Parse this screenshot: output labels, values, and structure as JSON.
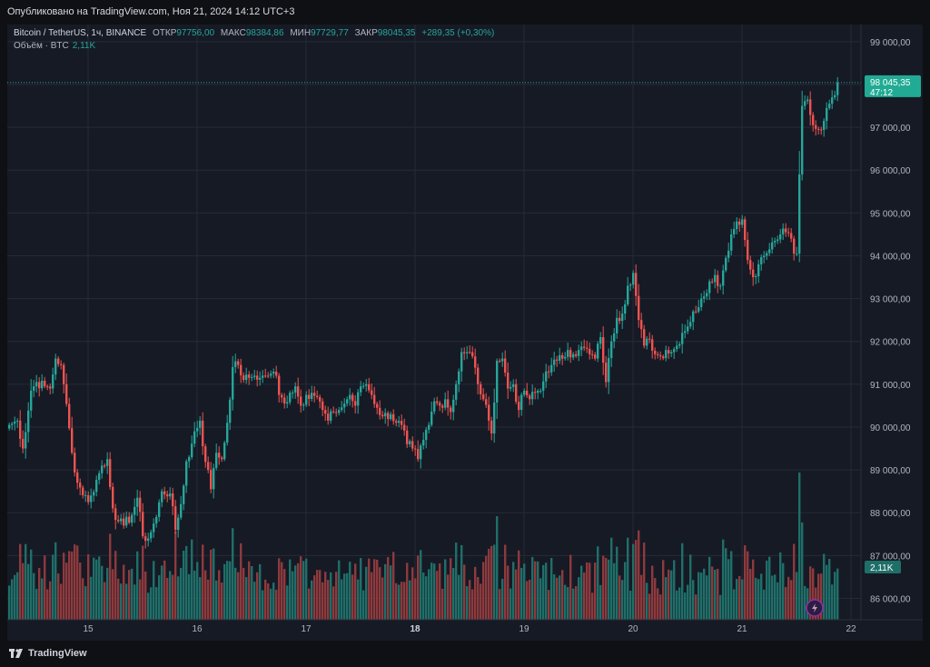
{
  "header": {
    "published": "Опубликовано на TradingView.com, Ноя 21, 2024 14:12 UTC+3"
  },
  "legend": {
    "symbol": "Bitcoin / TetherUS, 1ч, BINANCE",
    "open_label": "ОТКР",
    "open_value": "97756,00",
    "high_label": "МАКС",
    "high_value": "98384,86",
    "low_label": "МИН",
    "low_value": "97729,77",
    "close_label": "ЗАКР",
    "close_value": "98045,35",
    "change": "+289,35 (+0,30%)",
    "volume_label": "Объём · BTC",
    "volume_value": "2,11K"
  },
  "brand": "TradingView",
  "colors": {
    "up": "#26a69a",
    "down": "#ef5350",
    "background": "#161a25",
    "grid": "#252a37",
    "price_tag": "#22ab94",
    "volume_up": "#1f6f69",
    "volume_down": "#8e3a3d"
  },
  "chart_data": {
    "type": "candlestick",
    "symbol": "BTC/USDT",
    "interval": "1h",
    "price_axis": {
      "ticks": [
        "99 000,00",
        "98 000,00",
        "97 000,00",
        "96 000,00",
        "95 000,00",
        "94 000,00",
        "93 000,00",
        "92 000,00",
        "91 000,00",
        "90 000,00",
        "89 000,00",
        "88 000,00",
        "87 000,00",
        "86 000,00"
      ],
      "range": [
        85500,
        99400
      ],
      "position": "right"
    },
    "time_axis": {
      "labels": [
        "15",
        "16",
        "17",
        "18",
        "19",
        "20",
        "21",
        "22"
      ]
    },
    "last_price_label": "98 045,35",
    "countdown": "47:12",
    "last_price": 98045.35,
    "volume_label": "2,11K",
    "grid": true,
    "anchors": [
      [
        0,
        90050
      ],
      [
        3,
        90150
      ],
      [
        5,
        89500
      ],
      [
        8,
        90850
      ],
      [
        10,
        91050
      ],
      [
        13,
        90950
      ],
      [
        15,
        90900
      ],
      [
        17,
        91600
      ],
      [
        19,
        91450
      ],
      [
        20,
        91000
      ],
      [
        23,
        89400
      ],
      [
        25,
        88700
      ],
      [
        29,
        88250
      ],
      [
        30,
        88400
      ],
      [
        34,
        89100
      ],
      [
        36,
        89250
      ],
      [
        37,
        88600
      ],
      [
        38,
        88100
      ],
      [
        40,
        87800
      ],
      [
        42,
        87700
      ],
      [
        45,
        87950
      ],
      [
        47,
        88350
      ],
      [
        49,
        87450
      ],
      [
        51,
        87400
      ],
      [
        54,
        87900
      ],
      [
        56,
        88500
      ],
      [
        59,
        88450
      ],
      [
        61,
        87600
      ],
      [
        63,
        88200
      ],
      [
        65,
        89200
      ],
      [
        66,
        89300
      ],
      [
        68,
        89900
      ],
      [
        70,
        90150
      ],
      [
        71,
        89550
      ],
      [
        73,
        89000
      ],
      [
        74,
        88550
      ],
      [
        76,
        89400
      ],
      [
        78,
        89250
      ],
      [
        80,
        90100
      ],
      [
        82,
        91400
      ],
      [
        84,
        91450
      ],
      [
        86,
        91100
      ],
      [
        88,
        91150
      ],
      [
        90,
        91200
      ],
      [
        92,
        91150
      ],
      [
        94,
        91200
      ],
      [
        96,
        91250
      ],
      [
        98,
        91200
      ],
      [
        99,
        90750
      ],
      [
        101,
        90550
      ],
      [
        103,
        90800
      ],
      [
        105,
        90950
      ],
      [
        107,
        90500
      ],
      [
        109,
        90750
      ],
      [
        111,
        90800
      ],
      [
        113,
        90700
      ],
      [
        115,
        90400
      ],
      [
        117,
        90150
      ],
      [
        119,
        90350
      ],
      [
        121,
        90400
      ],
      [
        123,
        90550
      ],
      [
        125,
        90750
      ],
      [
        127,
        90500
      ],
      [
        129,
        90950
      ],
      [
        131,
        91000
      ],
      [
        133,
        90750
      ],
      [
        135,
        90450
      ],
      [
        137,
        90250
      ],
      [
        140,
        90300
      ],
      [
        142,
        90100
      ],
      [
        144,
        90050
      ],
      [
        146,
        89600
      ],
      [
        148,
        89500
      ],
      [
        150,
        89250
      ],
      [
        152,
        89700
      ],
      [
        154,
        90050
      ],
      [
        156,
        90600
      ],
      [
        158,
        90500
      ],
      [
        160,
        90650
      ],
      [
        162,
        90350
      ],
      [
        164,
        91000
      ],
      [
        166,
        91750
      ],
      [
        168,
        91750
      ],
      [
        170,
        91650
      ],
      [
        172,
        91000
      ],
      [
        174,
        90650
      ],
      [
        176,
        90150
      ],
      [
        177,
        89850
      ],
      [
        179,
        91550
      ],
      [
        181,
        91600
      ],
      [
        183,
        90900
      ],
      [
        185,
        91000
      ],
      [
        187,
        90400
      ],
      [
        189,
        90850
      ],
      [
        191,
        90650
      ],
      [
        193,
        90800
      ],
      [
        195,
        90850
      ],
      [
        197,
        91300
      ],
      [
        199,
        91450
      ],
      [
        201,
        91550
      ],
      [
        203,
        91600
      ],
      [
        205,
        91800
      ],
      [
        207,
        91700
      ],
      [
        209,
        91800
      ],
      [
        211,
        91850
      ],
      [
        213,
        91700
      ],
      [
        215,
        91600
      ],
      [
        217,
        92100
      ],
      [
        219,
        91050
      ],
      [
        221,
        92000
      ],
      [
        223,
        92550
      ],
      [
        225,
        92650
      ],
      [
        227,
        93300
      ],
      [
        229,
        93600
      ],
      [
        231,
        92500
      ],
      [
        233,
        91900
      ],
      [
        235,
        92050
      ],
      [
        237,
        91700
      ],
      [
        239,
        91650
      ],
      [
        241,
        91800
      ],
      [
        243,
        91750
      ],
      [
        245,
        91900
      ],
      [
        247,
        92200
      ],
      [
        249,
        92350
      ],
      [
        251,
        92700
      ],
      [
        253,
        92800
      ],
      [
        255,
        93050
      ],
      [
        257,
        93400
      ],
      [
        259,
        93550
      ],
      [
        261,
        93300
      ],
      [
        263,
        93950
      ],
      [
        265,
        94500
      ],
      [
        267,
        94800
      ],
      [
        269,
        94850
      ],
      [
        271,
        93900
      ],
      [
        273,
        93500
      ],
      [
        275,
        93800
      ],
      [
        277,
        94000
      ],
      [
        279,
        94150
      ],
      [
        281,
        94350
      ],
      [
        283,
        94500
      ],
      [
        285,
        94550
      ],
      [
        287,
        94400
      ],
      [
        288,
        94050
      ],
      [
        289,
        94050
      ],
      [
        290,
        95900
      ],
      [
        291,
        97500
      ],
      [
        293,
        97650
      ],
      [
        295,
        97050
      ],
      [
        297,
        96950
      ],
      [
        299,
        97150
      ],
      [
        301,
        97550
      ],
      [
        302,
        97700
      ],
      [
        303,
        97750
      ],
      [
        304,
        98045
      ]
    ],
    "candle_count": 305,
    "volume_range": [
      0,
      16000
    ]
  }
}
